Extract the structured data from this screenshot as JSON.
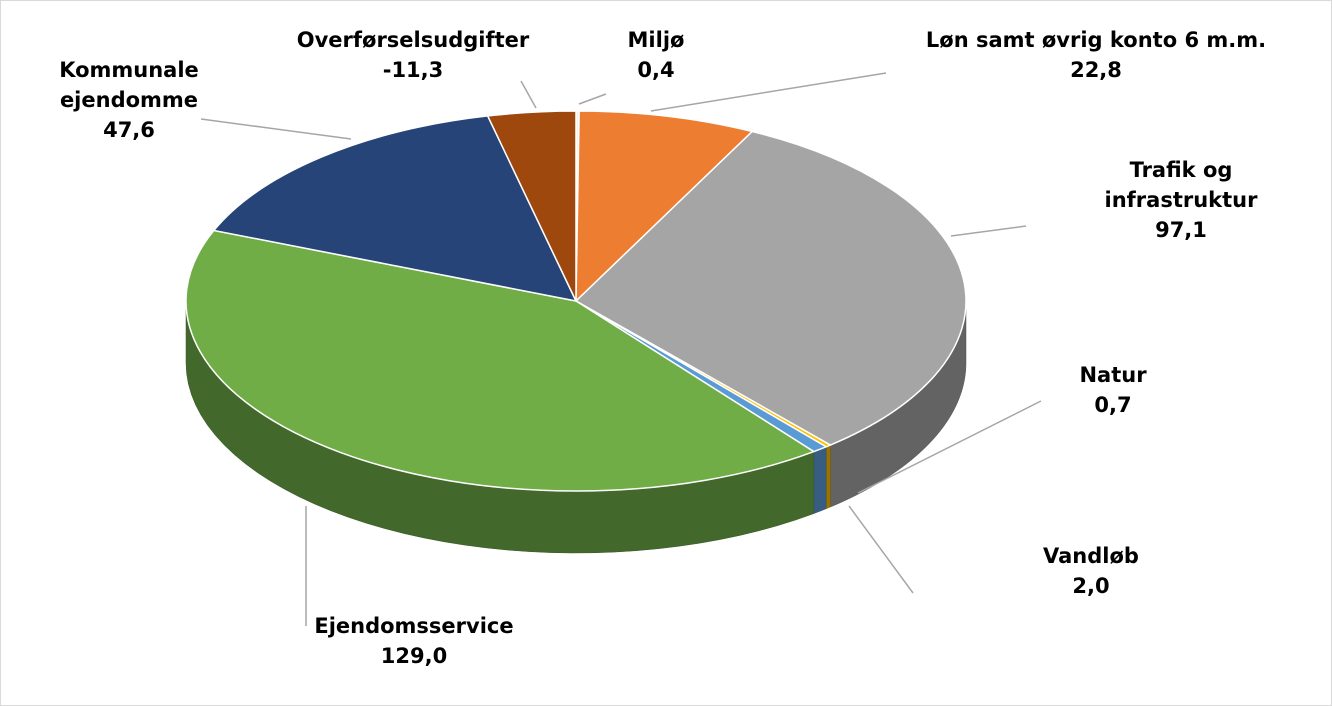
{
  "chart_data": {
    "type": "pie",
    "categories": [
      "Miljø",
      "Løn samt øvrig konto 6 m.m.",
      "Trafik og infrastruktur",
      "Natur",
      "Vandløb",
      "Ejendomsservice",
      "Kommunale ejendomme",
      "Overførselsudgifter"
    ],
    "values": [
      0.4,
      22.8,
      97.1,
      0.7,
      2.0,
      129.0,
      47.6,
      -11.3
    ],
    "value_labels": [
      "0,4",
      "22,8",
      "97,1",
      "0,7",
      "2,0",
      "129,0",
      "47,6",
      "-11,3"
    ],
    "colors": [
      "#f2f2f2",
      "#ed7d31",
      "#a5a5a5",
      "#ffc000",
      "#5b9bd5",
      "#70ad47",
      "#264478",
      "#9e480e"
    ]
  }
}
